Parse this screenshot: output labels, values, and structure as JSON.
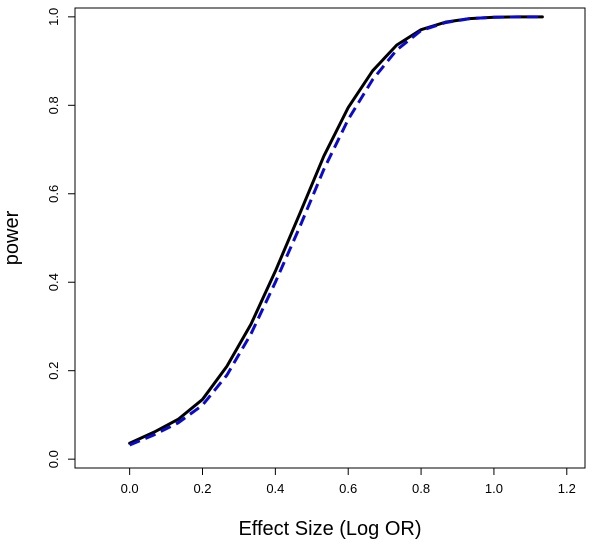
{
  "chart_data": {
    "type": "line",
    "title": "",
    "xlabel": "Effect Size (Log OR)",
    "ylabel": "power",
    "xlim": [
      -0.15,
      1.25
    ],
    "ylim": [
      -0.02,
      1.02
    ],
    "x_ticks": [
      0.0,
      0.2,
      0.4,
      0.6,
      0.8,
      1.0,
      1.2
    ],
    "x_tick_labels": [
      "0.0",
      "0.2",
      "0.4",
      "0.6",
      "0.8",
      "1.0",
      "1.2"
    ],
    "y_ticks": [
      0.0,
      0.2,
      0.4,
      0.6,
      0.8,
      1.0
    ],
    "y_tick_labels": [
      "0.0",
      "0.2",
      "0.4",
      "0.6",
      "0.8",
      "1.0"
    ],
    "grid": false,
    "legend": "none",
    "x": [
      0.0,
      0.067,
      0.133,
      0.2,
      0.267,
      0.333,
      0.4,
      0.467,
      0.533,
      0.6,
      0.667,
      0.733,
      0.8,
      0.867,
      0.933,
      1.0,
      1.067,
      1.133
    ],
    "series": [
      {
        "style": "solid",
        "color": "#000000",
        "values": [
          0.036,
          0.061,
          0.09,
          0.135,
          0.21,
          0.305,
          0.425,
          0.555,
          0.685,
          0.795,
          0.878,
          0.936,
          0.971,
          0.988,
          0.996,
          0.999,
          1.0,
          1.0
        ]
      },
      {
        "style": "dashed",
        "color": "#0a0acc",
        "values": [
          0.032,
          0.055,
          0.082,
          0.122,
          0.19,
          0.283,
          0.4,
          0.525,
          0.655,
          0.768,
          0.858,
          0.925,
          0.969,
          0.987,
          0.996,
          0.999,
          1.0,
          1.0
        ]
      }
    ]
  }
}
